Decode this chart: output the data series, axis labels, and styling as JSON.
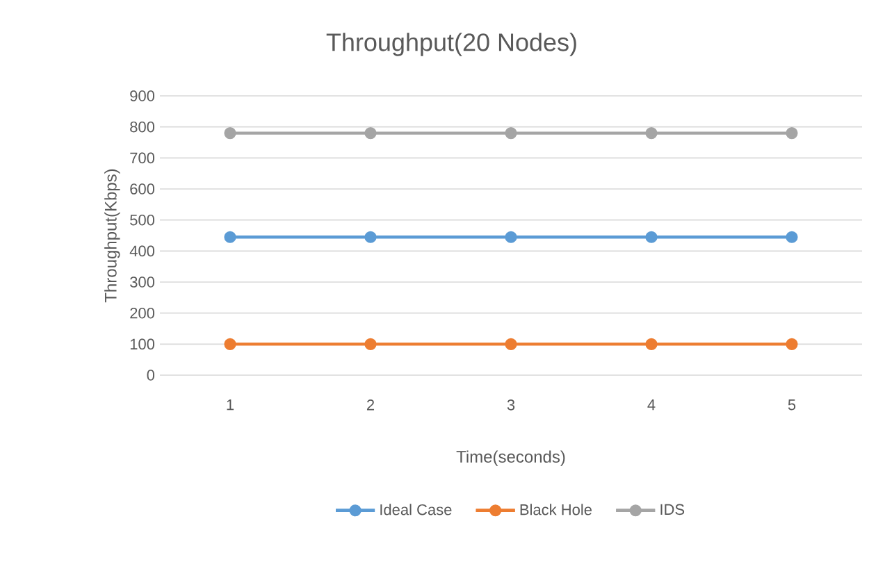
{
  "chart_data": {
    "type": "line",
    "title": "Throughput(20 Nodes)",
    "xlabel": "Time(seconds)",
    "ylabel": "Throughput(Kbps)",
    "categories": [
      "1",
      "2",
      "3",
      "4",
      "5"
    ],
    "series": [
      {
        "name": "Ideal Case",
        "color": "#5b9bd5",
        "values": [
          445,
          445,
          445,
          445,
          445
        ]
      },
      {
        "name": "Black Hole",
        "color": "#ed7d31",
        "values": [
          100,
          100,
          100,
          100,
          100
        ]
      },
      {
        "name": "IDS",
        "color": "#a5a5a5",
        "values": [
          780,
          780,
          780,
          780,
          780
        ]
      }
    ],
    "ylim": [
      0,
      900
    ],
    "yticks": [
      0,
      100,
      200,
      300,
      400,
      500,
      600,
      700,
      800,
      900
    ],
    "grid": "y",
    "legend": "bottom",
    "marker": "circle",
    "line_style": "solid"
  }
}
